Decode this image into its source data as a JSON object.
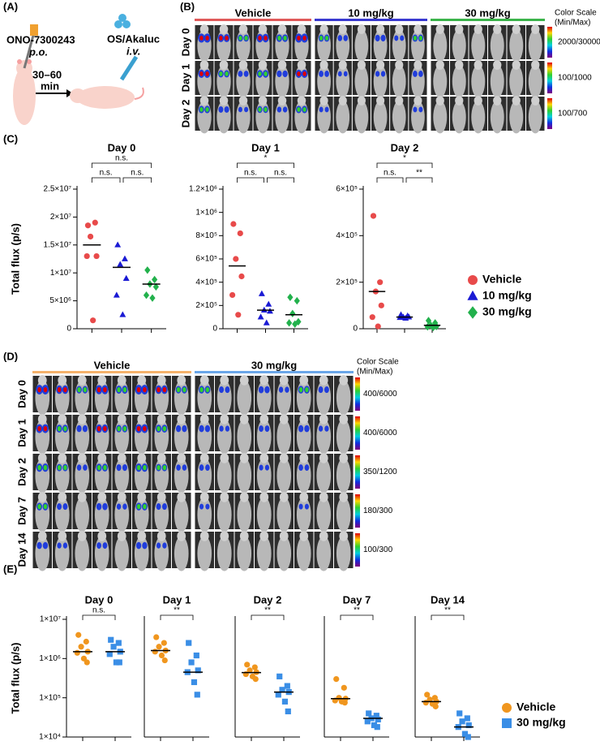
{
  "panels": {
    "labels": [
      "(A)",
      "(B)",
      "(C)",
      "(D)",
      "(E)"
    ]
  },
  "schematic": {
    "drug": "ONO-7300243",
    "drug_route": "p.o.",
    "interval": "30–60",
    "interval_unit": "min",
    "probe": "OS/Akaluc",
    "probe_route": "i.v."
  },
  "imaging_b": {
    "groups": [
      {
        "name": "Vehicle",
        "color": "#e05a5a"
      },
      {
        "name": "10 mg/kg",
        "color": "#3a3ad0"
      },
      {
        "name": "30 mg/kg",
        "color": "#3cb44b"
      }
    ],
    "rows": [
      "Day 0",
      "Day 1",
      "Day 2"
    ],
    "scale_title": "Color Scale",
    "scale_subtitle": "(Min/Max)",
    "scales": [
      "2000/30000",
      "100/1000",
      "100/700"
    ]
  },
  "imaging_d": {
    "groups": [
      {
        "name": "Vehicle",
        "color": "#f5b26b"
      },
      {
        "name": "30 mg/kg",
        "color": "#6aa6e8"
      }
    ],
    "rows": [
      "Day 0",
      "Day 1",
      "Day 2",
      "Day 7",
      "Day 14"
    ],
    "scale_title": "Color Scale",
    "scale_subtitle": "(Min/Max)",
    "scales": [
      "400/6000",
      "400/6000",
      "350/1200",
      "180/300",
      "100/300"
    ]
  },
  "chart_data": [
    {
      "type": "strip",
      "title": "Day 0",
      "ylabel": "Total flux (p/s)",
      "categories": [
        null,
        null,
        null
      ],
      "ylim": [
        0,
        25000000
      ],
      "yticks": [
        0,
        {
          "value": 5000000,
          "label": "5×10⁶"
        },
        {
          "value": 10000000,
          "label": "1×10⁷"
        },
        {
          "value": 15000000,
          "label": "1.5×10⁷"
        },
        {
          "value": 20000000,
          "label": "2×10⁷"
        },
        {
          "value": 25000000,
          "label": "2.5×10⁷"
        }
      ],
      "annotations": [
        "n.s.",
        "n.s.",
        "n.s."
      ],
      "series": [
        {
          "color": "#e84a4a",
          "marker": "circle",
          "values": [
            18500000,
            19000000,
            16500000,
            13000000,
            13000000,
            1500000
          ],
          "median": 15000000
        },
        {
          "color": "#1a1ad4",
          "marker": "triangle",
          "values": [
            15000000,
            12500000,
            11500000,
            9000000,
            6000000,
            2500000
          ],
          "median": 11000000
        },
        {
          "color": "#22b14c",
          "marker": "diamond",
          "values": [
            10500000,
            8800000,
            8000000,
            7500000,
            6000000,
            5500000
          ],
          "median": 8000000
        }
      ]
    },
    {
      "type": "strip",
      "title": "Day 1",
      "categories": [
        null,
        null,
        null
      ],
      "ylim": [
        0,
        1200000
      ],
      "yticks": [
        0,
        {
          "value": 200000,
          "label": "2×10⁵"
        },
        {
          "value": 400000,
          "label": "4×10⁵"
        },
        {
          "value": 600000,
          "label": "6×10⁵"
        },
        {
          "value": 800000,
          "label": "8×10⁵"
        },
        {
          "value": 1000000,
          "label": "1×10⁶"
        },
        {
          "value": 1200000,
          "label": "1.2×10⁶"
        }
      ],
      "annotations": [
        "*",
        "n.s.",
        "n.s."
      ],
      "series": [
        {
          "color": "#e84a4a",
          "marker": "circle",
          "values": [
            900000,
            820000,
            600000,
            450000,
            290000,
            120000
          ],
          "median": 540000
        },
        {
          "color": "#1a1ad4",
          "marker": "triangle",
          "values": [
            300000,
            210000,
            160000,
            150000,
            100000,
            50000
          ],
          "median": 160000
        },
        {
          "color": "#22b14c",
          "marker": "diamond",
          "values": [
            270000,
            240000,
            130000,
            60000,
            50000,
            40000
          ],
          "median": 120000
        }
      ]
    },
    {
      "type": "strip",
      "title": "Day 2",
      "categories": [
        null,
        null,
        null
      ],
      "ylim": [
        0,
        600000
      ],
      "legend": "right",
      "yticks": [
        0,
        {
          "value": 200000,
          "label": "2×10⁵"
        },
        {
          "value": 400000,
          "label": "4×10⁵"
        },
        {
          "value": 600000,
          "label": "6×10⁵"
        }
      ],
      "annotations": [
        "*",
        "n.s.",
        "**"
      ],
      "series": [
        {
          "name": "Vehicle",
          "color": "#e84a4a",
          "marker": "circle",
          "values": [
            485000,
            200000,
            160000,
            100000,
            50000,
            10000
          ],
          "median": 160000
        },
        {
          "name": "10 mg/kg",
          "color": "#1a1ad4",
          "marker": "triangle",
          "values": [
            60000,
            55000,
            50000,
            50000,
            48000,
            45000
          ],
          "median": 50000
        },
        {
          "name": "30 mg/kg",
          "color": "#22b14c",
          "marker": "diamond",
          "values": [
            35000,
            25000,
            15000,
            10000,
            8000,
            5000
          ],
          "median": 15000
        }
      ]
    },
    {
      "type": "strip",
      "title": "Day 0",
      "ylabel": "Total flux (p/s)",
      "log_scale": true,
      "categories": [
        null,
        null
      ],
      "ylim": [
        10000,
        10000000
      ],
      "yticks": [
        {
          "value": 10000,
          "label": "1×10⁴"
        },
        {
          "value": 100000,
          "label": "1×10⁵"
        },
        {
          "value": 1000000,
          "label": "1×10⁶"
        },
        {
          "value": 10000000,
          "label": "1×10⁷"
        }
      ],
      "annotations": [
        "n.s."
      ],
      "series": [
        {
          "color": "#f0961e",
          "marker": "circle",
          "values": [
            4000000,
            2700000,
            2000000,
            1500000,
            1400000,
            1000000,
            800000
          ],
          "median": 1500000
        },
        {
          "color": "#3a8ee6",
          "marker": "square",
          "values": [
            3000000,
            2500000,
            2000000,
            1500000,
            1300000,
            800000,
            800000
          ],
          "median": 1500000
        }
      ]
    },
    {
      "type": "strip",
      "title": "Day 1",
      "log_scale": true,
      "categories": [
        null,
        null
      ],
      "ylim": [
        10000,
        10000000
      ],
      "annotations": [
        "**"
      ],
      "series": [
        {
          "color": "#f0961e",
          "marker": "circle",
          "values": [
            3500000,
            2500000,
            2000000,
            1600000,
            1500000,
            1200000,
            900000
          ],
          "median": 1600000
        },
        {
          "color": "#3a8ee6",
          "marker": "square",
          "values": [
            2500000,
            1200000,
            800000,
            500000,
            450000,
            250000,
            120000
          ],
          "median": 450000
        }
      ]
    },
    {
      "type": "strip",
      "title": "Day 2",
      "log_scale": true,
      "categories": [
        null,
        null
      ],
      "ylim": [
        10000,
        10000000
      ],
      "annotations": [
        "**"
      ],
      "series": [
        {
          "color": "#f0961e",
          "marker": "circle",
          "values": [
            700000,
            600000,
            500000,
            450000,
            400000,
            350000,
            300000
          ],
          "median": 440000
        },
        {
          "color": "#3a8ee6",
          "marker": "square",
          "values": [
            350000,
            200000,
            160000,
            140000,
            120000,
            80000,
            45000
          ],
          "median": 140000
        }
      ]
    },
    {
      "type": "strip",
      "title": "Day 7",
      "log_scale": true,
      "categories": [
        null,
        null
      ],
      "ylim": [
        10000,
        10000000
      ],
      "annotations": [
        "**"
      ],
      "series": [
        {
          "color": "#f0961e",
          "marker": "circle",
          "values": [
            300000,
            180000,
            100000,
            95000,
            85000,
            80000,
            75000
          ],
          "median": 95000
        },
        {
          "color": "#3a8ee6",
          "marker": "square",
          "values": [
            40000,
            35000,
            30000,
            28000,
            25000,
            20000,
            18000
          ],
          "median": 30000
        }
      ]
    },
    {
      "type": "strip",
      "title": "Day 14",
      "log_scale": true,
      "categories": [
        null,
        null
      ],
      "ylim": [
        10000,
        10000000
      ],
      "annotations": [
        "**"
      ],
      "legend": "right",
      "series": [
        {
          "name": "Vehicle",
          "color": "#f0961e",
          "marker": "circle",
          "values": [
            120000,
            100000,
            90000,
            80000,
            75000,
            70000,
            60000
          ],
          "median": 80000
        },
        {
          "name": "30 mg/kg",
          "color": "#3a8ee6",
          "marker": "square",
          "values": [
            40000,
            30000,
            25000,
            20000,
            18000,
            12000,
            10000
          ],
          "median": 18000
        }
      ]
    }
  ]
}
